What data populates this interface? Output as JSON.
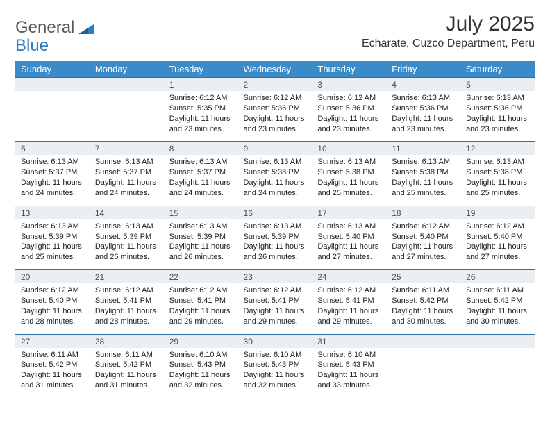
{
  "logo": {
    "text_a": "General",
    "text_b": "Blue"
  },
  "title": "July 2025",
  "location": "Echarate, Cuzco Department, Peru",
  "colors": {
    "header_bg": "#3b8bc8",
    "header_text": "#ffffff",
    "daynum_bg": "#eceff2",
    "row_border": "#2f6fa3",
    "body_text": "#222222",
    "logo_gray": "#5a5a5a",
    "logo_blue": "#2a7bbf"
  },
  "weekdays": [
    "Sunday",
    "Monday",
    "Tuesday",
    "Wednesday",
    "Thursday",
    "Friday",
    "Saturday"
  ],
  "weeks": [
    [
      null,
      null,
      {
        "num": "1",
        "sunrise": "Sunrise: 6:12 AM",
        "sunset": "Sunset: 5:35 PM",
        "daylight": "Daylight: 11 hours and 23 minutes."
      },
      {
        "num": "2",
        "sunrise": "Sunrise: 6:12 AM",
        "sunset": "Sunset: 5:36 PM",
        "daylight": "Daylight: 11 hours and 23 minutes."
      },
      {
        "num": "3",
        "sunrise": "Sunrise: 6:12 AM",
        "sunset": "Sunset: 5:36 PM",
        "daylight": "Daylight: 11 hours and 23 minutes."
      },
      {
        "num": "4",
        "sunrise": "Sunrise: 6:13 AM",
        "sunset": "Sunset: 5:36 PM",
        "daylight": "Daylight: 11 hours and 23 minutes."
      },
      {
        "num": "5",
        "sunrise": "Sunrise: 6:13 AM",
        "sunset": "Sunset: 5:36 PM",
        "daylight": "Daylight: 11 hours and 23 minutes."
      }
    ],
    [
      {
        "num": "6",
        "sunrise": "Sunrise: 6:13 AM",
        "sunset": "Sunset: 5:37 PM",
        "daylight": "Daylight: 11 hours and 24 minutes."
      },
      {
        "num": "7",
        "sunrise": "Sunrise: 6:13 AM",
        "sunset": "Sunset: 5:37 PM",
        "daylight": "Daylight: 11 hours and 24 minutes."
      },
      {
        "num": "8",
        "sunrise": "Sunrise: 6:13 AM",
        "sunset": "Sunset: 5:37 PM",
        "daylight": "Daylight: 11 hours and 24 minutes."
      },
      {
        "num": "9",
        "sunrise": "Sunrise: 6:13 AM",
        "sunset": "Sunset: 5:38 PM",
        "daylight": "Daylight: 11 hours and 24 minutes."
      },
      {
        "num": "10",
        "sunrise": "Sunrise: 6:13 AM",
        "sunset": "Sunset: 5:38 PM",
        "daylight": "Daylight: 11 hours and 25 minutes."
      },
      {
        "num": "11",
        "sunrise": "Sunrise: 6:13 AM",
        "sunset": "Sunset: 5:38 PM",
        "daylight": "Daylight: 11 hours and 25 minutes."
      },
      {
        "num": "12",
        "sunrise": "Sunrise: 6:13 AM",
        "sunset": "Sunset: 5:38 PM",
        "daylight": "Daylight: 11 hours and 25 minutes."
      }
    ],
    [
      {
        "num": "13",
        "sunrise": "Sunrise: 6:13 AM",
        "sunset": "Sunset: 5:39 PM",
        "daylight": "Daylight: 11 hours and 25 minutes."
      },
      {
        "num": "14",
        "sunrise": "Sunrise: 6:13 AM",
        "sunset": "Sunset: 5:39 PM",
        "daylight": "Daylight: 11 hours and 26 minutes."
      },
      {
        "num": "15",
        "sunrise": "Sunrise: 6:13 AM",
        "sunset": "Sunset: 5:39 PM",
        "daylight": "Daylight: 11 hours and 26 minutes."
      },
      {
        "num": "16",
        "sunrise": "Sunrise: 6:13 AM",
        "sunset": "Sunset: 5:39 PM",
        "daylight": "Daylight: 11 hours and 26 minutes."
      },
      {
        "num": "17",
        "sunrise": "Sunrise: 6:13 AM",
        "sunset": "Sunset: 5:40 PM",
        "daylight": "Daylight: 11 hours and 27 minutes."
      },
      {
        "num": "18",
        "sunrise": "Sunrise: 6:12 AM",
        "sunset": "Sunset: 5:40 PM",
        "daylight": "Daylight: 11 hours and 27 minutes."
      },
      {
        "num": "19",
        "sunrise": "Sunrise: 6:12 AM",
        "sunset": "Sunset: 5:40 PM",
        "daylight": "Daylight: 11 hours and 27 minutes."
      }
    ],
    [
      {
        "num": "20",
        "sunrise": "Sunrise: 6:12 AM",
        "sunset": "Sunset: 5:40 PM",
        "daylight": "Daylight: 11 hours and 28 minutes."
      },
      {
        "num": "21",
        "sunrise": "Sunrise: 6:12 AM",
        "sunset": "Sunset: 5:41 PM",
        "daylight": "Daylight: 11 hours and 28 minutes."
      },
      {
        "num": "22",
        "sunrise": "Sunrise: 6:12 AM",
        "sunset": "Sunset: 5:41 PM",
        "daylight": "Daylight: 11 hours and 29 minutes."
      },
      {
        "num": "23",
        "sunrise": "Sunrise: 6:12 AM",
        "sunset": "Sunset: 5:41 PM",
        "daylight": "Daylight: 11 hours and 29 minutes."
      },
      {
        "num": "24",
        "sunrise": "Sunrise: 6:12 AM",
        "sunset": "Sunset: 5:41 PM",
        "daylight": "Daylight: 11 hours and 29 minutes."
      },
      {
        "num": "25",
        "sunrise": "Sunrise: 6:11 AM",
        "sunset": "Sunset: 5:42 PM",
        "daylight": "Daylight: 11 hours and 30 minutes."
      },
      {
        "num": "26",
        "sunrise": "Sunrise: 6:11 AM",
        "sunset": "Sunset: 5:42 PM",
        "daylight": "Daylight: 11 hours and 30 minutes."
      }
    ],
    [
      {
        "num": "27",
        "sunrise": "Sunrise: 6:11 AM",
        "sunset": "Sunset: 5:42 PM",
        "daylight": "Daylight: 11 hours and 31 minutes."
      },
      {
        "num": "28",
        "sunrise": "Sunrise: 6:11 AM",
        "sunset": "Sunset: 5:42 PM",
        "daylight": "Daylight: 11 hours and 31 minutes."
      },
      {
        "num": "29",
        "sunrise": "Sunrise: 6:10 AM",
        "sunset": "Sunset: 5:43 PM",
        "daylight": "Daylight: 11 hours and 32 minutes."
      },
      {
        "num": "30",
        "sunrise": "Sunrise: 6:10 AM",
        "sunset": "Sunset: 5:43 PM",
        "daylight": "Daylight: 11 hours and 32 minutes."
      },
      {
        "num": "31",
        "sunrise": "Sunrise: 6:10 AM",
        "sunset": "Sunset: 5:43 PM",
        "daylight": "Daylight: 11 hours and 33 minutes."
      },
      null,
      null
    ]
  ]
}
